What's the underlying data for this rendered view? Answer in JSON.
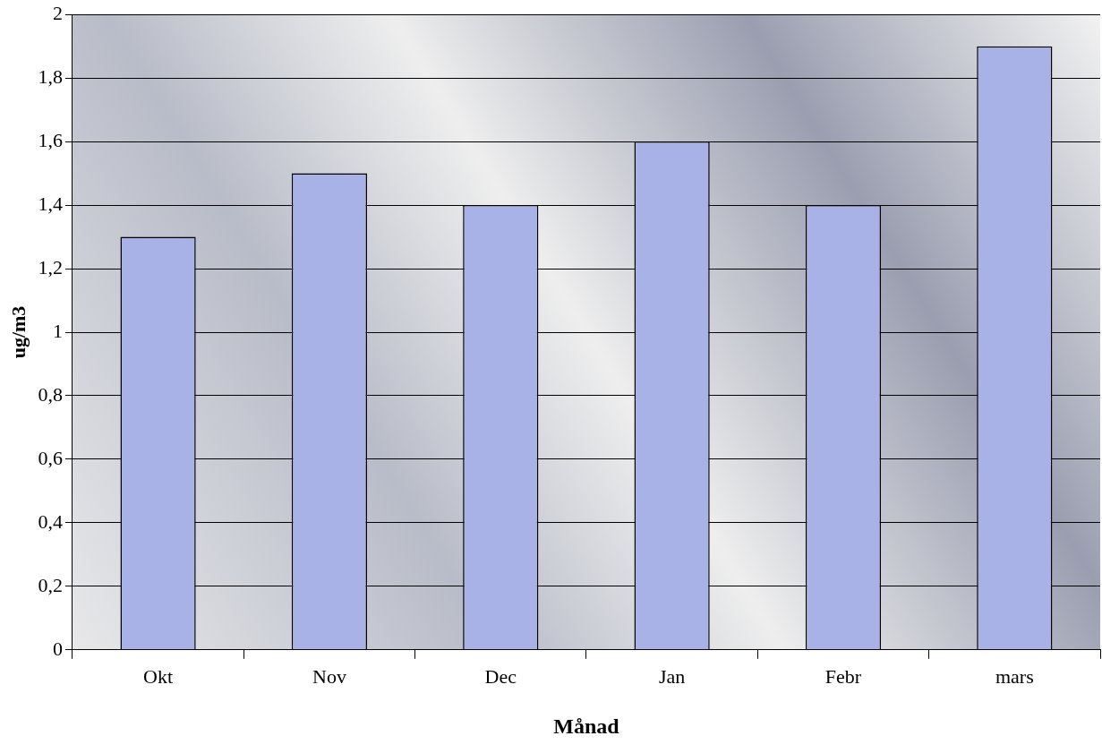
{
  "chart_data": {
    "type": "bar",
    "xlabel": "Månad",
    "ylabel": "ug/m3",
    "categories": [
      "Okt",
      "Nov",
      "Dec",
      "Jan",
      "Febr",
      "mars"
    ],
    "values": [
      1.3,
      1.5,
      1.4,
      1.6,
      1.4,
      1.9
    ],
    "color": "#a8b2e6",
    "ylim": [
      0,
      2
    ],
    "yticks": [
      0,
      {
        "value": 0.2,
        "label": "0,2"
      },
      {
        "value": 0.4,
        "label": "0,4"
      },
      {
        "value": 0.6,
        "label": "0,6"
      },
      {
        "value": 0.8,
        "label": "0,8"
      },
      1,
      {
        "value": 1.2,
        "label": "1,2"
      },
      {
        "value": 1.4,
        "label": "1,4"
      },
      {
        "value": 1.6,
        "label": "1,6"
      },
      {
        "value": 1.8,
        "label": "1,8"
      },
      2
    ],
    "grid": "y",
    "legend": false
  }
}
